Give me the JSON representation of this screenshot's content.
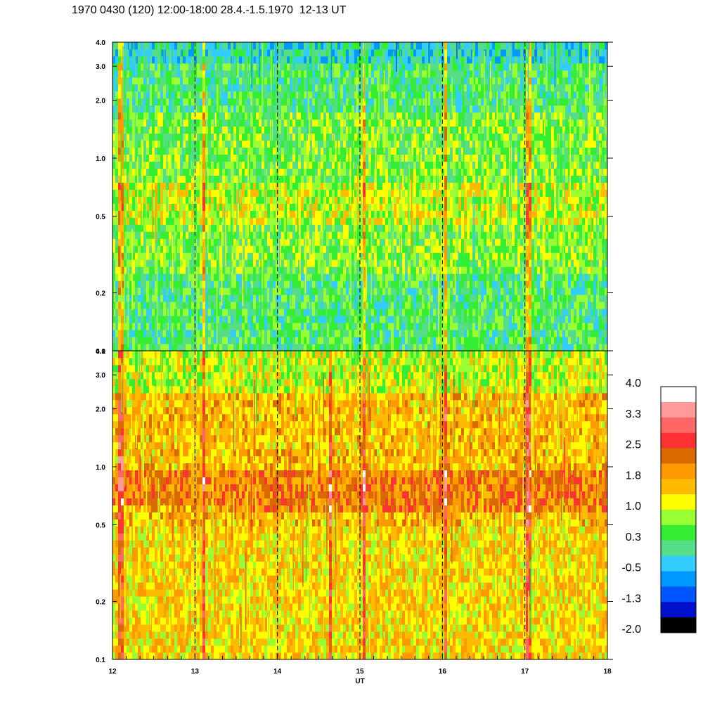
{
  "chart_data": {
    "type": "heatmap",
    "title": "1970 0430 (120) 12:00-18:00 28.4.-1.5.1970  12-13 UT",
    "xlabel": "UT",
    "x_ticks": [
      "12",
      "13",
      "14",
      "15",
      "16",
      "17",
      "18"
    ],
    "xlim": [
      12,
      18
    ],
    "y_scale": "log",
    "ylim": [
      0.1,
      4.0
    ],
    "y_ticks": [
      "0.1",
      "0.2",
      "0.5",
      "1.0",
      "2.0",
      "3.0",
      "4.0"
    ],
    "grid_x": "dashed vertical lines at each hour",
    "panels": [
      {
        "name": "upper",
        "dominant_levels": [
          {
            "ylim": [
              0.1,
              0.25
            ],
            "value": 0.3
          },
          {
            "ylim": [
              0.25,
              0.45
            ],
            "value": 0.6
          },
          {
            "ylim": [
              0.45,
              0.75
            ],
            "value": 1.0
          },
          {
            "ylim": [
              0.75,
              1.0
            ],
            "value": 0.6
          },
          {
            "ylim": [
              1.0,
              1.8
            ],
            "value": 0.6
          },
          {
            "ylim": [
              1.8,
              3.0
            ],
            "value": 0.3
          },
          {
            "ylim": [
              3.0,
              4.0
            ],
            "value": -0.2
          }
        ],
        "spikes_x": [
          12.1,
          13.1,
          15.05,
          16.05,
          17.05
        ]
      },
      {
        "name": "lower",
        "dominant_levels": [
          {
            "ylim": [
              0.1,
              0.5
            ],
            "value": 1.4
          },
          {
            "ylim": [
              0.5,
              0.65
            ],
            "value": 1.6
          },
          {
            "ylim": [
              0.65,
              1.0
            ],
            "value": 2.1
          },
          {
            "ylim": [
              1.0,
              2.5
            ],
            "value": 1.6
          },
          {
            "ylim": [
              2.5,
              4.0
            ],
            "value": 1.0
          }
        ],
        "band": {
          "x_start": 13.25,
          "ylim": [
            0.6,
            0.95
          ],
          "value": 2.1
        },
        "spikes_x": [
          12.1,
          13.1,
          14.65,
          15.05,
          16.05,
          17.05
        ]
      }
    ],
    "colorbar": {
      "labels": [
        "4.0",
        "3.3",
        "2.5",
        "1.8",
        "1.0",
        "0.3",
        "-0.5",
        "-1.3",
        "-2.0"
      ],
      "colors": [
        "#ffffff",
        "#ff9a9a",
        "#ff6666",
        "#ff3333",
        "#d86a00",
        "#ff9900",
        "#ffbb00",
        "#ffff00",
        "#99ff33",
        "#33ee33",
        "#55dd88",
        "#33ccff",
        "#0099ff",
        "#0055ff",
        "#0011cc",
        "#000000"
      ]
    }
  }
}
